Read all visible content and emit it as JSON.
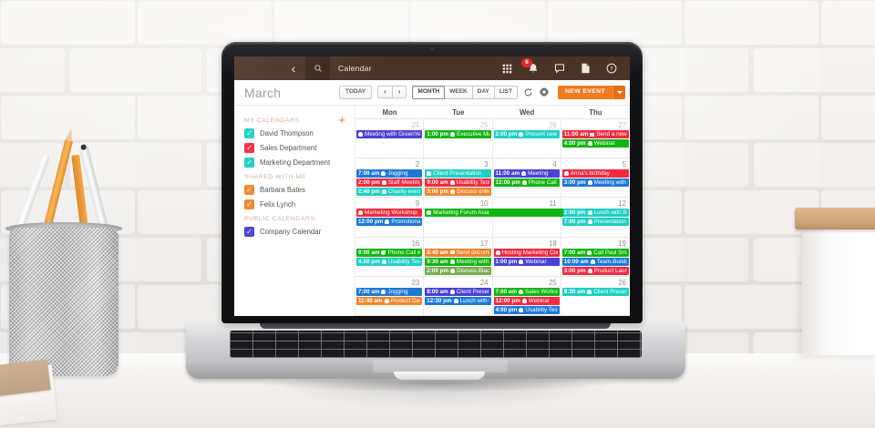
{
  "app": {
    "topbar": {
      "title": "Calendar",
      "notifications": "6"
    },
    "toolbar": {
      "month": "March",
      "today_label": "TODAY",
      "prev_label": "‹",
      "next_label": "›",
      "views": [
        {
          "label": "MONTH",
          "active": true
        },
        {
          "label": "WEEK",
          "active": false
        },
        {
          "label": "DAY",
          "active": false
        },
        {
          "label": "LIST",
          "active": false
        }
      ],
      "new_event_label": "NEW EVENT"
    },
    "sidebar": {
      "sections": [
        {
          "label": "MY CALENDARS",
          "has_add": true,
          "items": [
            {
              "name": "David Thompson",
              "color": "cyan"
            },
            {
              "name": "Sales Department",
              "color": "red"
            },
            {
              "name": "Marketing Department",
              "color": "cyan"
            }
          ]
        },
        {
          "label": "SHARED WITH ME",
          "has_add": false,
          "items": [
            {
              "name": "Barbara Bates",
              "color": "orange"
            },
            {
              "name": "Felix Lynch",
              "color": "orange"
            }
          ]
        },
        {
          "label": "PUBLIC CALENDARS",
          "has_add": false,
          "items": [
            {
              "name": "Company Calendar",
              "color": "indigo"
            }
          ]
        }
      ]
    },
    "calendar": {
      "day_headers": [
        "Mon",
        "Tue",
        "Wed",
        "Thu"
      ],
      "weeks": [
        {
          "days": [
            {
              "date": "24",
              "muted": true,
              "events": [
                {
                  "icon": "bell",
                  "title": "Meeting with GreenYear",
                  "color": "indigo"
                }
              ]
            },
            {
              "date": "25",
              "muted": true,
              "events": [
                {
                  "time": "1:00 pm",
                  "icon": "bell",
                  "title": "Executive Mee",
                  "color": "green"
                }
              ]
            },
            {
              "date": "26",
              "muted": true,
              "events": [
                {
                  "time": "2:00 pm",
                  "icon": "bell",
                  "title": "Present new s",
                  "color": "cyan"
                }
              ]
            },
            {
              "date": "27",
              "muted": true,
              "events": [
                {
                  "time": "11:00 am",
                  "icon": "mail",
                  "title": "Send a new l",
                  "color": "red"
                },
                {
                  "time": "4:00 pm",
                  "icon": "bell",
                  "title": "Webinar",
                  "color": "green"
                }
              ]
            }
          ]
        },
        {
          "days": [
            {
              "date": "2",
              "muted": false,
              "events": [
                {
                  "time": "7:00 am",
                  "icon": "bell",
                  "title": "Jogging",
                  "color": "blue"
                },
                {
                  "time": "2:00 pm",
                  "icon": "bell",
                  "title": "Staff Meeting",
                  "color": "red"
                },
                {
                  "time": "2:40 pm",
                  "icon": "bell",
                  "title": "Charity event",
                  "color": "cyan"
                }
              ]
            },
            {
              "date": "3",
              "muted": false,
              "events": [
                {
                  "icon": "bell",
                  "title": "Client Presentation",
                  "color": "cyan"
                },
                {
                  "time": "9:00 am",
                  "icon": "bell",
                  "title": "Usability Testin",
                  "color": "red"
                },
                {
                  "time": "3:00 pm",
                  "icon": "bell",
                  "title": "Discuss onboa",
                  "color": "orange"
                }
              ]
            },
            {
              "date": "4",
              "muted": false,
              "events": [
                {
                  "time": "11:00 am",
                  "icon": "bell",
                  "title": "Meeting",
                  "color": "indigo"
                },
                {
                  "time": "12:00 pm",
                  "icon": "bell",
                  "title": "Phone Call wi",
                  "color": "green"
                }
              ]
            },
            {
              "date": "5",
              "muted": false,
              "events": [
                {
                  "icon": "bell",
                  "title": "Anna's birthday",
                  "color": "red"
                },
                {
                  "time": "3:00 pm",
                  "icon": "bell",
                  "title": "Meeting with J",
                  "color": "blue"
                }
              ]
            }
          ]
        },
        {
          "days": [
            {
              "date": "9",
              "muted": false,
              "events": [
                {
                  "icon": "bell",
                  "title": "Marketing Workshop",
                  "color": "red"
                },
                {
                  "time": "12:00 pm",
                  "icon": "bell",
                  "title": "Promotional",
                  "color": "blue"
                }
              ]
            },
            {
              "date": "10",
              "muted": false,
              "events": [
                {
                  "icon": "bell",
                  "title": "Marketing Forum Asia",
                  "color": "green",
                  "span": 2
                }
              ]
            },
            {
              "date": "11",
              "muted": false,
              "events": []
            },
            {
              "date": "12",
              "muted": false,
              "events": [
                {
                  "time": "2:00 pm",
                  "icon": "bell",
                  "title": "Lunch with Ba",
                  "color": "cyan"
                },
                {
                  "time": "7:00 pm",
                  "icon": "bell",
                  "title": "Presentation f",
                  "color": "cyan"
                }
              ]
            }
          ]
        },
        {
          "days": [
            {
              "date": "16",
              "muted": false,
              "events": [
                {
                  "time": "9:00 am",
                  "icon": "phone",
                  "title": "Phone Call with",
                  "color": "green"
                },
                {
                  "time": "4:00 pm",
                  "icon": "bell",
                  "title": "Usability Testir",
                  "color": "cyan"
                }
              ]
            },
            {
              "date": "17",
              "muted": false,
              "events": [
                {
                  "time": "8:40 am",
                  "icon": "mail",
                  "title": "Send documen",
                  "color": "orange"
                },
                {
                  "time": "9:30 am",
                  "icon": "bell",
                  "title": "Meeting with J",
                  "color": "green"
                },
                {
                  "time": "2:00 pm",
                  "icon": "bell",
                  "title": "Discuss Black",
                  "color": "olive"
                }
              ]
            },
            {
              "date": "18",
              "muted": false,
              "events": [
                {
                  "icon": "bell",
                  "title": "Hosting Marketing Con",
                  "color": "red"
                },
                {
                  "time": "1:00 pm",
                  "icon": "bell",
                  "title": "Webinar",
                  "color": "indigo"
                }
              ]
            },
            {
              "date": "19",
              "muted": false,
              "events": [
                {
                  "time": "7:00 am",
                  "icon": "bell",
                  "title": "Call Paul Smit",
                  "color": "green"
                },
                {
                  "time": "10:00 am",
                  "icon": "bell",
                  "title": "Team-Buildin",
                  "color": "blue"
                },
                {
                  "time": "3:00 pm",
                  "icon": "bell",
                  "title": "Product Laun",
                  "color": "red"
                }
              ]
            }
          ]
        },
        {
          "days": [
            {
              "date": "23",
              "muted": false,
              "events": [
                {
                  "time": "7:00 am",
                  "icon": "bell",
                  "title": "Jogging",
                  "color": "blue"
                },
                {
                  "time": "11:40 am",
                  "icon": "bell",
                  "title": "Product Dem",
                  "color": "orange"
                }
              ]
            },
            {
              "date": "24",
              "muted": false,
              "events": [
                {
                  "time": "8:00 am",
                  "icon": "bell",
                  "title": "Client Present",
                  "color": "indigo"
                },
                {
                  "time": "12:30 pm",
                  "icon": "bell",
                  "title": "Lunch with N",
                  "color": "blue"
                }
              ]
            },
            {
              "date": "25",
              "muted": false,
              "events": [
                {
                  "time": "7:00 am",
                  "icon": "bell",
                  "title": "Sales Worksho",
                  "color": "green"
                },
                {
                  "time": "12:00 pm",
                  "icon": "bell",
                  "title": "Webinar",
                  "color": "red"
                },
                {
                  "time": "4:00 pm",
                  "icon": "bell",
                  "title": "Usability Testi",
                  "color": "blue"
                }
              ]
            },
            {
              "date": "26",
              "muted": false,
              "events": [
                {
                  "time": "9:30 am",
                  "icon": "bell",
                  "title": "Client Present",
                  "color": "cyan"
                }
              ]
            }
          ]
        }
      ]
    },
    "palette": {
      "blue": "#1e78d7",
      "red": "#f2293f",
      "cyan": "#1fcfc4",
      "green": "#10b512",
      "orange": "#f0862c",
      "indigo": "#4b41d4",
      "olive": "#79a951",
      "accent_orange": "#f47b20",
      "topbar_brown": "#4a3428",
      "badge_red": "#e8262e"
    }
  }
}
